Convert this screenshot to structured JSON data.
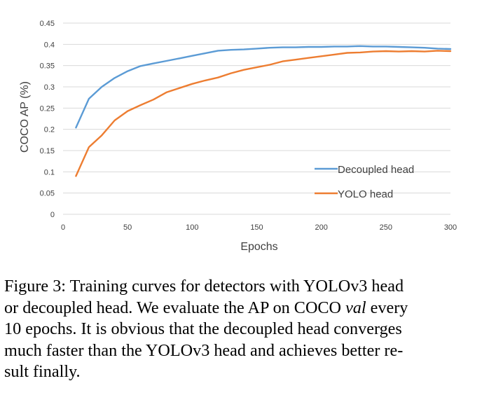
{
  "chart_data": {
    "type": "line",
    "xlabel": "Epochs",
    "ylabel": "COCO AP (%)",
    "xlim": [
      0,
      300
    ],
    "ylim": [
      0,
      0.45
    ],
    "x_ticks": [
      "0",
      "50",
      "100",
      "150",
      "200",
      "250",
      "300"
    ],
    "y_ticks": [
      "0",
      "0.05",
      "0.1",
      "0.15",
      "0.2",
      "0.25",
      "0.3",
      "0.35",
      "0.4",
      "0.45"
    ],
    "grid": "horizontal",
    "legend_position": "bottom-right",
    "series": [
      {
        "name": "Decoupled head",
        "color": "#5b9bd5",
        "x": [
          10,
          20,
          30,
          40,
          50,
          60,
          70,
          80,
          90,
          100,
          110,
          120,
          130,
          140,
          150,
          160,
          170,
          180,
          190,
          200,
          210,
          220,
          230,
          240,
          250,
          260,
          270,
          280,
          290,
          300
        ],
        "values": [
          0.204,
          0.272,
          0.3,
          0.321,
          0.337,
          0.349,
          0.355,
          0.361,
          0.367,
          0.373,
          0.379,
          0.385,
          0.387,
          0.388,
          0.39,
          0.392,
          0.393,
          0.393,
          0.394,
          0.394,
          0.395,
          0.395,
          0.396,
          0.395,
          0.395,
          0.394,
          0.393,
          0.392,
          0.39,
          0.389
        ]
      },
      {
        "name": "YOLO head",
        "color": "#ed7d31",
        "x": [
          10,
          20,
          30,
          40,
          50,
          60,
          70,
          80,
          90,
          100,
          110,
          120,
          130,
          140,
          150,
          160,
          170,
          180,
          190,
          200,
          210,
          220,
          230,
          240,
          250,
          260,
          270,
          280,
          290,
          300
        ],
        "values": [
          0.09,
          0.158,
          0.186,
          0.221,
          0.243,
          0.257,
          0.27,
          0.287,
          0.297,
          0.307,
          0.315,
          0.322,
          0.332,
          0.34,
          0.346,
          0.352,
          0.36,
          0.364,
          0.368,
          0.372,
          0.376,
          0.38,
          0.381,
          0.383,
          0.384,
          0.383,
          0.384,
          0.383,
          0.385,
          0.384
        ]
      }
    ]
  },
  "caption": {
    "line1": "Figure 3: Training curves for detectors with YOLOv3 head",
    "line2_pre": "or decoupled head. We evaluate the AP on COCO ",
    "line2_em": "val",
    "line2_post": " every",
    "line3": "10 epochs. It is obvious that the decoupled head converges",
    "line4": "much faster than the YOLOv3 head and achieves better re-",
    "line5": "sult finally."
  }
}
